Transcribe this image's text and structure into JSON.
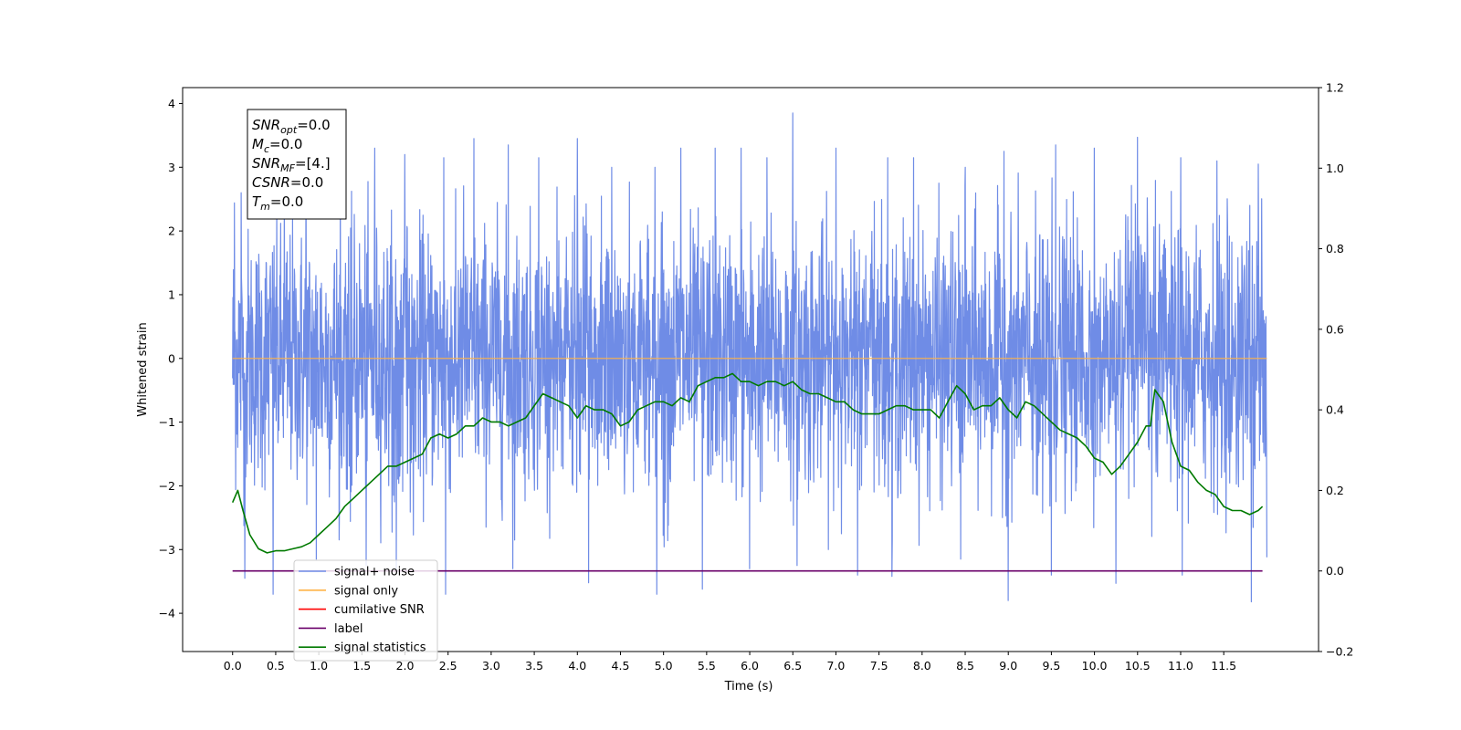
{
  "chart_data": {
    "type": "line",
    "xlabel": "Time (s)",
    "ylabel": "Whitened strain",
    "xlim": [
      -0.58,
      12.6
    ],
    "ylim": [
      -4.6,
      4.25
    ],
    "y2lim": [
      -0.2,
      1.2
    ],
    "x_ticks": [
      0.0,
      0.5,
      1.0,
      1.5,
      2.0,
      2.5,
      3.0,
      3.5,
      4.0,
      4.5,
      5.0,
      5.5,
      6.0,
      6.5,
      7.0,
      7.5,
      8.0,
      8.5,
      9.0,
      9.5,
      10.0,
      10.5,
      11.0,
      11.5
    ],
    "x_tick_labels": [
      "0.0",
      "0.5",
      "1.0",
      "1.5",
      "2.0",
      "2.5",
      "3.0",
      "3.5",
      "4.0",
      "4.5",
      "5.0",
      "5.5",
      "6.0",
      "6.5",
      "7.0",
      "7.5",
      "8.0",
      "8.5",
      "9.0",
      "9.5",
      "10.0",
      "10.5",
      "11.0",
      "11.5"
    ],
    "y_ticks": [
      -4,
      -3,
      -2,
      -1,
      0,
      1,
      2,
      3,
      4
    ],
    "y_tick_labels": [
      "−4",
      "−3",
      "−2",
      "−1",
      "0",
      "1",
      "2",
      "3",
      "4"
    ],
    "y2_ticks": [
      -0.2,
      0.0,
      0.2,
      0.4,
      0.6,
      0.8,
      1.0,
      1.2
    ],
    "y2_tick_labels": [
      "−0.2",
      "0.0",
      "0.2",
      "0.4",
      "0.6",
      "0.8",
      "1.0",
      "1.2"
    ],
    "grid": false,
    "legend_position": "bottom-left",
    "info_box": [
      {
        "base": "SNR",
        "sub": "opt",
        "value": "=0.0"
      },
      {
        "base": "M",
        "sub": "c",
        "value": "=0.0"
      },
      {
        "base": "SNR",
        "sub": "MF",
        "value": "=[4.]"
      },
      {
        "base": "CSNR",
        "sub": "",
        "value": "=0.0"
      },
      {
        "base": "T",
        "sub": "m",
        "value": "=0.0"
      }
    ],
    "series": [
      {
        "name": "signal+ noise",
        "axis": "left",
        "color": "#6f8ce6",
        "kind": "noise",
        "x_range": [
          0.0,
          12.0
        ],
        "std": 1.0,
        "peaks_high": [
          [
            0.02,
            2.44
          ],
          [
            0.1,
            2.6
          ],
          [
            0.47,
            2.9
          ],
          [
            0.6,
            3.1
          ],
          [
            0.85,
            3.15
          ],
          [
            1.25,
            3.2
          ],
          [
            1.65,
            3.3
          ],
          [
            2.0,
            3.2
          ],
          [
            2.45,
            3.15
          ],
          [
            2.8,
            3.45
          ],
          [
            3.2,
            3.35
          ],
          [
            3.55,
            3.15
          ],
          [
            4.0,
            3.45
          ],
          [
            4.4,
            3.0
          ],
          [
            4.9,
            3.0
          ],
          [
            5.2,
            3.3
          ],
          [
            5.6,
            3.3
          ],
          [
            5.9,
            3.3
          ],
          [
            6.2,
            3.15
          ],
          [
            6.5,
            3.85
          ],
          [
            7.0,
            3.3
          ],
          [
            7.6,
            3.15
          ],
          [
            7.9,
            3.15
          ],
          [
            8.5,
            3.0
          ],
          [
            8.95,
            3.25
          ],
          [
            9.55,
            3.35
          ],
          [
            10.0,
            3.3
          ],
          [
            10.5,
            3.47
          ],
          [
            11.0,
            3.15
          ],
          [
            11.42,
            3.1
          ],
          [
            11.9,
            3.05
          ]
        ],
        "peaks_low": [
          [
            0.14,
            -3.45
          ],
          [
            0.47,
            -3.7
          ],
          [
            0.97,
            -3.15
          ],
          [
            1.55,
            -3.25
          ],
          [
            1.9,
            -3.3
          ],
          [
            2.47,
            -3.7
          ],
          [
            3.25,
            -3.3
          ],
          [
            4.13,
            -3.52
          ],
          [
            4.92,
            -3.7
          ],
          [
            5.45,
            -3.62
          ],
          [
            6.0,
            -3.3
          ],
          [
            6.55,
            -3.25
          ],
          [
            7.25,
            -3.4
          ],
          [
            7.65,
            -3.42
          ],
          [
            8.45,
            -3.15
          ],
          [
            9.0,
            -3.8
          ],
          [
            9.5,
            -3.4
          ],
          [
            10.25,
            -3.53
          ],
          [
            11.02,
            -3.4
          ],
          [
            11.82,
            -3.82
          ],
          [
            12.0,
            -3.12
          ]
        ]
      },
      {
        "name": "signal only",
        "axis": "left",
        "color": "#ffb347",
        "x": [
          0.0,
          12.0
        ],
        "y": [
          0.0,
          0.0
        ]
      },
      {
        "name": "cumilative SNR",
        "axis": "right",
        "color": "#ff0000",
        "x": [],
        "y": []
      },
      {
        "name": "label",
        "axis": "right",
        "color": "#6a006a",
        "x": [
          0.0,
          11.95
        ],
        "y": [
          0.0,
          0.0
        ]
      },
      {
        "name": "signal statistics",
        "axis": "right",
        "color": "#007a00",
        "x": [
          0.0,
          0.06,
          0.12,
          0.2,
          0.3,
          0.4,
          0.5,
          0.6,
          0.7,
          0.8,
          0.9,
          1.0,
          1.1,
          1.2,
          1.3,
          1.4,
          1.5,
          1.6,
          1.7,
          1.8,
          1.9,
          2.0,
          2.1,
          2.2,
          2.3,
          2.4,
          2.5,
          2.6,
          2.7,
          2.8,
          2.9,
          3.0,
          3.1,
          3.2,
          3.3,
          3.4,
          3.5,
          3.6,
          3.7,
          3.8,
          3.9,
          4.0,
          4.1,
          4.2,
          4.3,
          4.4,
          4.5,
          4.6,
          4.7,
          4.8,
          4.9,
          5.0,
          5.1,
          5.2,
          5.3,
          5.4,
          5.5,
          5.6,
          5.7,
          5.8,
          5.9,
          6.0,
          6.1,
          6.2,
          6.3,
          6.4,
          6.5,
          6.6,
          6.7,
          6.8,
          6.9,
          7.0,
          7.1,
          7.2,
          7.3,
          7.4,
          7.5,
          7.6,
          7.7,
          7.8,
          7.9,
          8.0,
          8.1,
          8.2,
          8.3,
          8.4,
          8.5,
          8.6,
          8.7,
          8.8,
          8.9,
          9.0,
          9.1,
          9.2,
          9.3,
          9.4,
          9.5,
          9.6,
          9.7,
          9.8,
          9.9,
          10.0,
          10.1,
          10.2,
          10.3,
          10.4,
          10.5,
          10.6,
          10.65,
          10.7,
          10.8,
          10.9,
          11.0,
          11.1,
          11.2,
          11.3,
          11.4,
          11.5,
          11.6,
          11.7,
          11.8,
          11.9,
          11.95
        ],
        "y": [
          0.17,
          0.2,
          0.15,
          0.09,
          0.055,
          0.045,
          0.05,
          0.05,
          0.055,
          0.06,
          0.07,
          0.09,
          0.11,
          0.13,
          0.16,
          0.18,
          0.2,
          0.22,
          0.24,
          0.26,
          0.26,
          0.27,
          0.28,
          0.29,
          0.33,
          0.34,
          0.33,
          0.34,
          0.36,
          0.36,
          0.38,
          0.37,
          0.37,
          0.36,
          0.37,
          0.38,
          0.41,
          0.44,
          0.43,
          0.42,
          0.41,
          0.38,
          0.41,
          0.4,
          0.4,
          0.39,
          0.36,
          0.37,
          0.4,
          0.41,
          0.42,
          0.42,
          0.41,
          0.43,
          0.42,
          0.46,
          0.47,
          0.48,
          0.48,
          0.49,
          0.47,
          0.47,
          0.46,
          0.47,
          0.47,
          0.46,
          0.47,
          0.45,
          0.44,
          0.44,
          0.43,
          0.42,
          0.42,
          0.4,
          0.39,
          0.39,
          0.39,
          0.4,
          0.41,
          0.41,
          0.4,
          0.4,
          0.4,
          0.38,
          0.42,
          0.46,
          0.44,
          0.4,
          0.41,
          0.41,
          0.43,
          0.4,
          0.38,
          0.42,
          0.41,
          0.39,
          0.37,
          0.35,
          0.34,
          0.33,
          0.31,
          0.28,
          0.27,
          0.24,
          0.26,
          0.29,
          0.32,
          0.36,
          0.36,
          0.45,
          0.42,
          0.32,
          0.26,
          0.25,
          0.22,
          0.2,
          0.19,
          0.16,
          0.15,
          0.15,
          0.14,
          0.15,
          0.16
        ]
      }
    ]
  }
}
